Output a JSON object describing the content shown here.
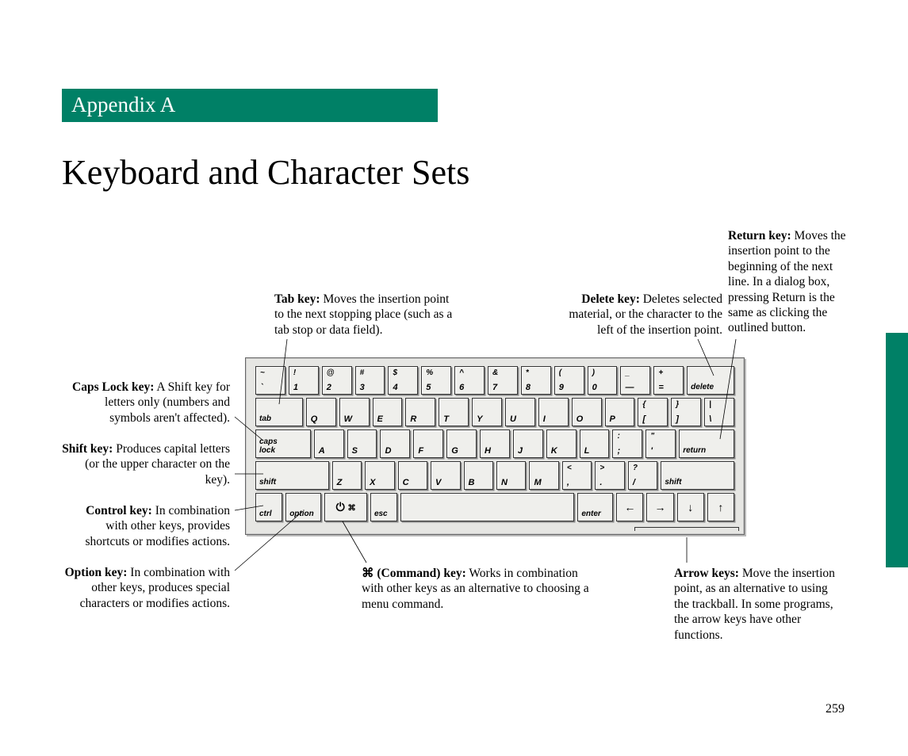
{
  "colors": {
    "accent": "#008066",
    "bg": "#ffffff",
    "key_bg": "#efefec",
    "kbd_bg": "#e6e6e3"
  },
  "fonts": {
    "body": "Georgia, serif",
    "key": "Helvetica, Arial, sans-serif",
    "title_size_pt": 33,
    "body_size_pt": 12
  },
  "appendix_label": "Appendix A",
  "title": "Keyboard and Character Sets",
  "page_number": "259",
  "callouts": {
    "tab": {
      "bold": "Tab key:",
      "text": " Moves the insertion point to the next stopping place (such as a tab stop or data field)."
    },
    "delete": {
      "bold": "Delete key:",
      "text": " Deletes selected material, or the character to the left of the insertion point."
    },
    "return": {
      "bold": "Return key:",
      "text": " Moves the insertion point to the beginning of the next line. In a dialog box, pressing Return is the same as clicking the outlined button."
    },
    "caps": {
      "bold": "Caps Lock key:",
      "text": " A Shift key for letters only (numbers and symbols aren't affected)."
    },
    "shift": {
      "bold": "Shift key:",
      "text": " Produces capital letters (or the upper character on the key)."
    },
    "control": {
      "bold": "Control key:",
      "text": " In combination with other keys, provides shortcuts or modifies actions."
    },
    "option": {
      "bold": "Option key:",
      "text": " In combination with other keys, produces special characters or modifies actions."
    },
    "command": {
      "bold": "⌘ (Command) key:",
      "text": " Works in combination with other keys as an alternative to choosing a menu command."
    },
    "arrows": {
      "bold": "Arrow keys:",
      "text": " Move the insertion point, as an alternative to using the trackball. In some programs, the arrow keys have other functions."
    }
  },
  "keyboard": {
    "row1": [
      {
        "top": "~",
        "bot": "`"
      },
      {
        "top": "!",
        "bot": "1"
      },
      {
        "top": "@",
        "bot": "2"
      },
      {
        "top": "#",
        "bot": "3"
      },
      {
        "top": "$",
        "bot": "4"
      },
      {
        "top": "%",
        "bot": "5"
      },
      {
        "top": "^",
        "bot": "6"
      },
      {
        "top": "&",
        "bot": "7"
      },
      {
        "top": "*",
        "bot": "8"
      },
      {
        "top": "(",
        "bot": "9"
      },
      {
        "top": ")",
        "bot": "0"
      },
      {
        "top": "_",
        "bot": "—"
      },
      {
        "top": "+",
        "bot": "="
      },
      {
        "lbl": "delete"
      }
    ],
    "row2": [
      {
        "lbl": "tab"
      },
      {
        "bot": "Q"
      },
      {
        "bot": "W"
      },
      {
        "bot": "E"
      },
      {
        "bot": "R"
      },
      {
        "bot": "T"
      },
      {
        "bot": "Y"
      },
      {
        "bot": "U"
      },
      {
        "bot": "I"
      },
      {
        "bot": "O"
      },
      {
        "bot": "P"
      },
      {
        "top": "{",
        "bot": "["
      },
      {
        "top": "}",
        "bot": "]"
      },
      {
        "top": "|",
        "bot": "\\"
      }
    ],
    "row3": [
      {
        "lbl": "caps\nlock"
      },
      {
        "bot": "A"
      },
      {
        "bot": "S"
      },
      {
        "bot": "D"
      },
      {
        "bot": "F"
      },
      {
        "bot": "G"
      },
      {
        "bot": "H"
      },
      {
        "bot": "J"
      },
      {
        "bot": "K"
      },
      {
        "bot": "L"
      },
      {
        "top": ":",
        "bot": ";"
      },
      {
        "top": "\"",
        "bot": "'"
      },
      {
        "lbl": "return"
      }
    ],
    "row4": [
      {
        "lbl": "shift"
      },
      {
        "bot": "Z"
      },
      {
        "bot": "X"
      },
      {
        "bot": "C"
      },
      {
        "bot": "V"
      },
      {
        "bot": "B"
      },
      {
        "bot": "N"
      },
      {
        "bot": "M"
      },
      {
        "top": "<",
        "bot": ","
      },
      {
        "top": ">",
        "bot": "."
      },
      {
        "top": "?",
        "bot": "/"
      },
      {
        "lbl": "shift"
      }
    ],
    "row5": [
      {
        "lbl": "ctrl"
      },
      {
        "lbl": "option"
      },
      {
        "sym": "⏻   ⌘"
      },
      {
        "lbl": "esc"
      },
      {
        "space": true
      },
      {
        "lbl": "enter"
      },
      {
        "sym": "←"
      },
      {
        "sym": "→"
      },
      {
        "sym": "↓"
      },
      {
        "sym": "↑"
      }
    ]
  }
}
